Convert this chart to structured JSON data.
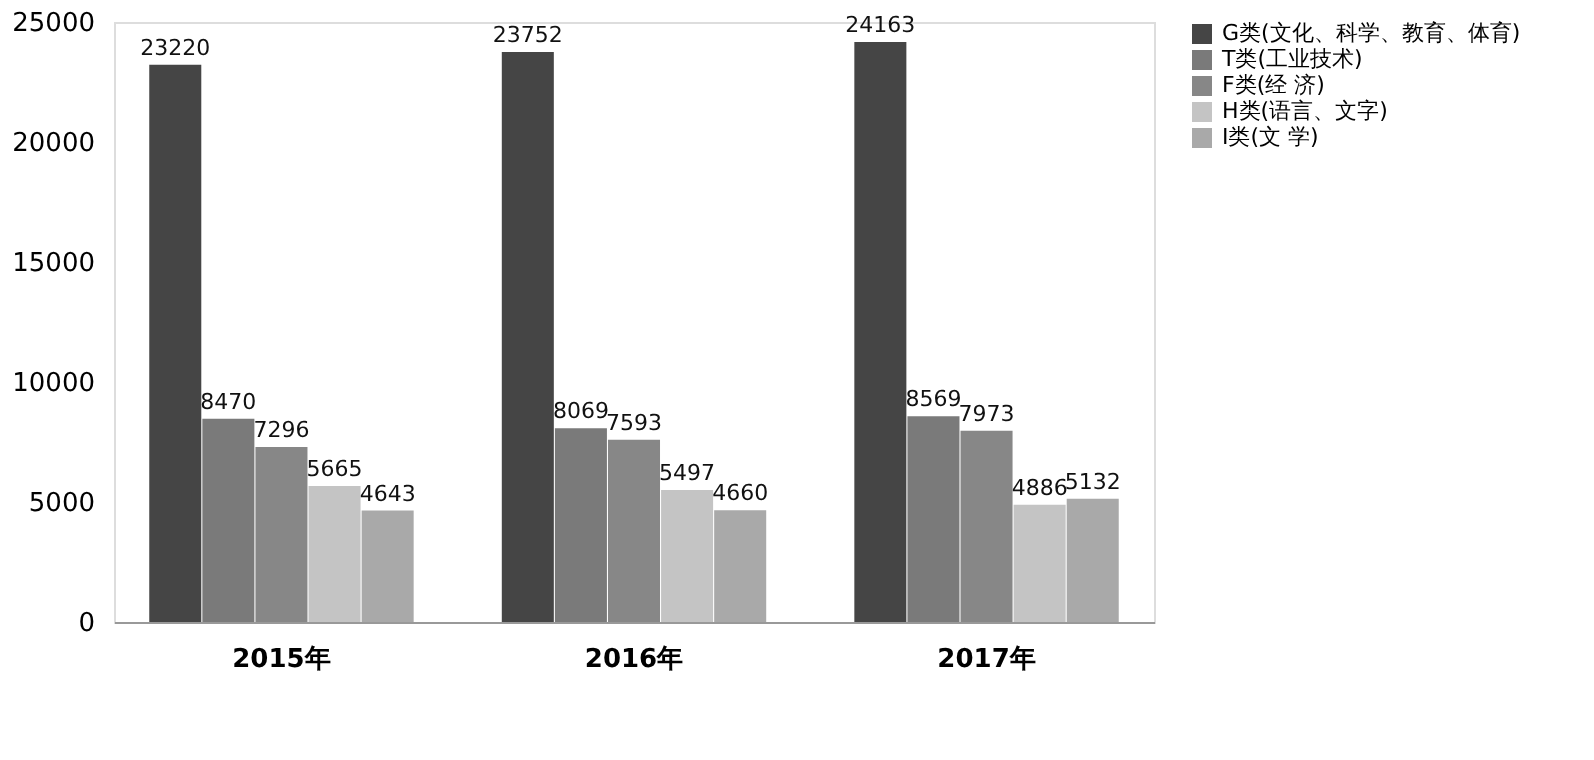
{
  "chart_data": {
    "type": "bar",
    "categories": [
      "2015年",
      "2016年",
      "2017年"
    ],
    "series": [
      {
        "name": "G类(文化、科学、教育、体育)",
        "color": "#454545",
        "values": [
          23220,
          23752,
          24163
        ]
      },
      {
        "name": "T类(工业技术)",
        "color": "#7a7a7a",
        "values": [
          8470,
          8069,
          8569
        ]
      },
      {
        "name": "F类(经 济)",
        "color": "#878787",
        "values": [
          7296,
          7593,
          7973
        ]
      },
      {
        "name": "H类(语言、文字)",
        "color": "#c4c4c4",
        "values": [
          5665,
          5497,
          4886
        ]
      },
      {
        "name": "I类(文 学)",
        "color": "#a9a9a9",
        "values": [
          4643,
          4660,
          5132
        ]
      }
    ],
    "ylim": [
      0,
      25000
    ],
    "yticks": [
      0,
      5000,
      10000,
      15000,
      20000,
      25000
    ],
    "grid": false,
    "legend": "top right",
    "data_labels": true
  }
}
